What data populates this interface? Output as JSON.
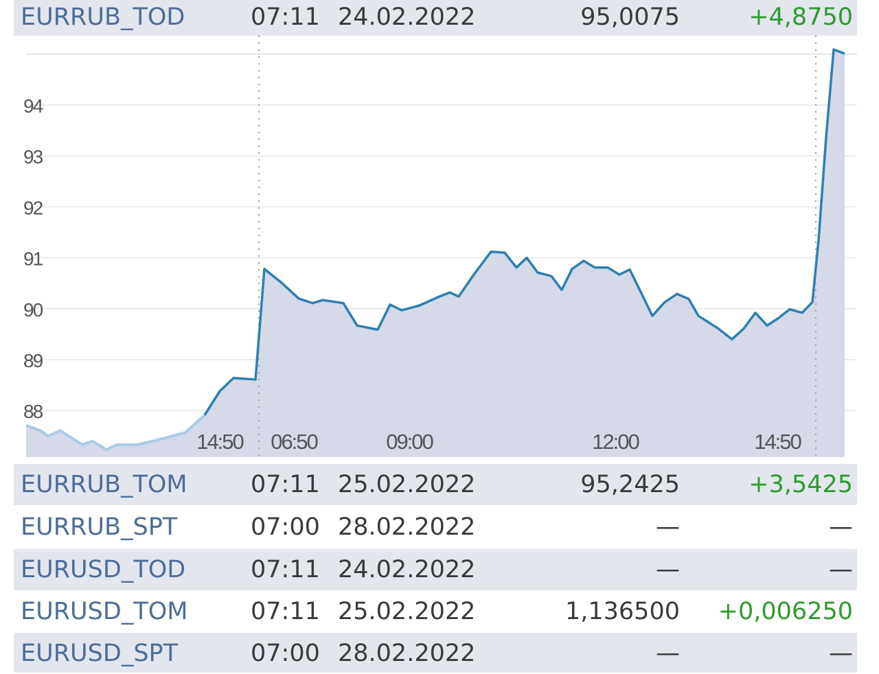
{
  "rows": [
    {
      "name": "EURRUB_TOD",
      "time": "07:11",
      "date": "24.02.2022",
      "price": "95,0075",
      "change": "+4,8750"
    },
    {
      "name": "EURRUB_TOM",
      "time": "07:11",
      "date": "25.02.2022",
      "price": "95,2425",
      "change": "+3,5425"
    },
    {
      "name": "EURRUB_SPT",
      "time": "07:00",
      "date": "28.02.2022",
      "price": "—",
      "change": "—"
    },
    {
      "name": "EURUSD_TOD",
      "time": "07:11",
      "date": "24.02.2022",
      "price": "—",
      "change": "—"
    },
    {
      "name": "EURUSD_TOM",
      "time": "07:11",
      "date": "25.02.2022",
      "price": "1,136500",
      "change": "+0,006250"
    },
    {
      "name": "EURUSD_SPT",
      "time": "07:00",
      "date": "28.02.2022",
      "price": "—",
      "change": "—"
    }
  ],
  "colors": {
    "line": "#2f7fb0",
    "line_prev": "#a9cbe6",
    "fill": "#d5d9e8",
    "change_positive": "#2f9a2f",
    "row_alt": "#e4e6ee"
  },
  "chart_data": {
    "type": "area",
    "y_ticks": [
      "88",
      "89",
      "90",
      "91",
      "92",
      "93",
      "94"
    ],
    "x_ticks": [
      "14:50",
      "06:50",
      "09:00",
      "12:00",
      "14:50"
    ],
    "ylim": [
      87.2,
      95.2
    ],
    "grid": true,
    "previous_session_points": 13,
    "values": [
      87.71,
      87.6,
      87.5,
      87.61,
      87.5,
      87.33,
      87.4,
      87.23,
      87.33,
      87.33,
      87.46,
      87.57,
      87.91,
      88.38,
      88.64,
      88.61,
      90.78,
      90.51,
      90.2,
      90.11,
      90.17,
      90.11,
      89.67,
      89.59,
      90.08,
      89.97,
      90.06,
      90.24,
      90.32,
      90.24,
      90.67,
      91.12,
      91.1,
      90.81,
      91.0,
      90.71,
      90.64,
      90.37,
      90.78,
      90.94,
      90.81,
      90.81,
      90.67,
      90.77,
      90.33,
      89.86,
      90.13,
      90.29,
      90.19,
      89.86,
      89.62,
      89.4,
      89.61,
      89.92,
      89.67,
      89.81,
      89.99,
      89.92,
      90.13,
      91.35,
      93.37,
      95.09,
      95.01
    ]
  }
}
